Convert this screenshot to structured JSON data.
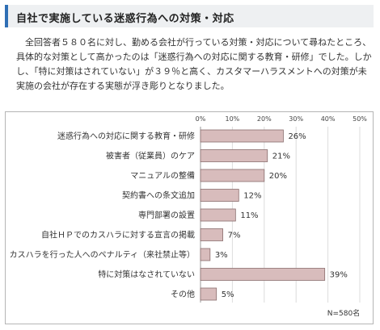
{
  "header": {
    "title": "自社で実施している迷惑行為への対策・対応"
  },
  "body_text": "全回答者５８０名に対し、勤める会社が行っている対策・対応について尋ねたところ、具体的な対策として高かったのは「迷惑行為への対応に関する教育・研修」でした。しかし、「特に対策はされていない」が３９％と高く、カスタマーハラスメントへの対策が未実施の会社が存在する実態が浮き彫りとなりました。",
  "chart_data": {
    "type": "bar",
    "orientation": "horizontal",
    "categories": [
      "迷惑行為への対応に関する教育・研修",
      "被害者（従業員）のケア",
      "マニュアルの整備",
      "契約書への条文追加",
      "専門部署の設置",
      "自社ＨＰでのカスハラに対する宣言の掲載",
      "カスハラを行った人へのペナルティ（来社禁止等）",
      "特に対策はなされていない",
      "その他"
    ],
    "values": [
      26,
      21,
      20,
      12,
      11,
      7,
      3,
      39,
      5
    ],
    "value_labels": [
      "26%",
      "21%",
      "20%",
      "12%",
      "11%",
      "7%",
      "3%",
      "39%",
      "5%"
    ],
    "xlim": [
      0,
      50
    ],
    "ticks": [
      0,
      10,
      20,
      30,
      40,
      50
    ],
    "tick_labels": [
      "0%",
      "10%",
      "20%",
      "30%",
      "40%",
      "50%"
    ],
    "axis_position": "top",
    "grid": true,
    "bar_color": "#d8bcbc",
    "bar_stroke": "#8a6e6e",
    "note": "N=580名"
  }
}
